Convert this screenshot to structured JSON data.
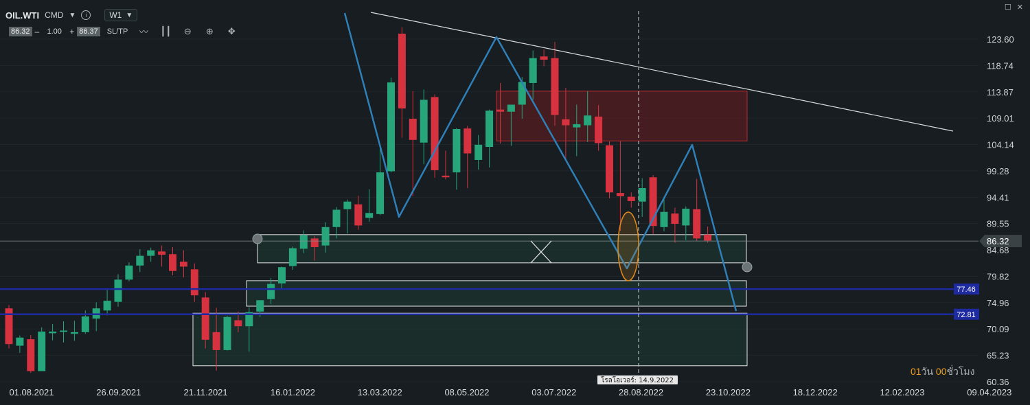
{
  "header": {
    "symbol": "OIL.WTI",
    "asset_class": "CMD",
    "info_icon": "info-icon",
    "timeframe": "W1"
  },
  "trade_panel": {
    "sell_price": "86.32",
    "minus": "–",
    "volume": "1.00",
    "plus": "+",
    "buy_price": "86.37",
    "sltp": "SL/TP",
    "tools": [
      "line-chart-icon",
      "candlestick-icon",
      "zoom-out-icon",
      "zoom-in-icon",
      "crosshair-icon"
    ]
  },
  "window_controls": {
    "maximize": "☐",
    "close": "✕"
  },
  "countdown": {
    "days_value": "01",
    "days_label": "วัน",
    "hours_value": "00",
    "hours_label": "ชั่วโมง"
  },
  "rollover_label": "โรลโอเวอร์: 14.9.2022",
  "colors": {
    "background": "#171d20",
    "bull": "#26a67a",
    "bear": "#d6323f",
    "zigzag": "#2f7fb8",
    "level_line": "#1e2aa0",
    "resistance_zone": "#5a1e22",
    "support_zone": "#1f3a33",
    "highlight_ellipse": "#e08a1c"
  },
  "chart_data": {
    "type": "candlestick",
    "symbol": "OIL.WTI",
    "timeframe": "W1",
    "y_range": [
      60.36,
      126.0
    ],
    "y_ticks": [
      "123.60",
      "118.74",
      "113.87",
      "109.01",
      "104.14",
      "99.28",
      "94.41",
      "89.55",
      "84.68",
      "79.82",
      "74.96",
      "70.09",
      "65.23",
      "60.36"
    ],
    "x_labels": [
      "01.08.2021",
      "26.09.2021",
      "21.11.2021",
      "16.01.2022",
      "13.03.2022",
      "08.05.2022",
      "03.07.2022",
      "28.08.2022",
      "23.10.2022",
      "18.12.2022",
      "12.02.2023",
      "09.04.2023"
    ],
    "current_price": 86.32,
    "price_labels": [
      {
        "value": 86.32,
        "text": "86.32"
      },
      {
        "value": 77.46,
        "text": "77.46"
      },
      {
        "value": 72.81,
        "text": "72.81"
      }
    ],
    "candles": [
      {
        "o": 73.9,
        "h": 74.5,
        "c": 67.3,
        "l": 66.5
      },
      {
        "o": 67.0,
        "h": 68.9,
        "c": 68.5,
        "l": 65.7
      },
      {
        "o": 68.2,
        "h": 69.0,
        "c": 62.3,
        "l": 62.0
      },
      {
        "o": 62.3,
        "h": 70.4,
        "c": 69.6,
        "l": 62.3
      },
      {
        "o": 69.3,
        "h": 71.0,
        "c": 69.6,
        "l": 68.0
      },
      {
        "o": 69.6,
        "h": 71.5,
        "c": 69.8,
        "l": 67.6
      },
      {
        "o": 69.2,
        "h": 71.6,
        "c": 69.5,
        "l": 67.9
      },
      {
        "o": 69.5,
        "h": 73.5,
        "c": 72.4,
        "l": 69.2
      },
      {
        "o": 72.0,
        "h": 75.0,
        "c": 73.9,
        "l": 69.7
      },
      {
        "o": 73.5,
        "h": 77.3,
        "c": 75.3,
        "l": 72.6
      },
      {
        "o": 75.1,
        "h": 80.2,
        "c": 79.2,
        "l": 74.2
      },
      {
        "o": 79.2,
        "h": 82.4,
        "c": 81.8,
        "l": 78.9
      },
      {
        "o": 81.8,
        "h": 84.8,
        "c": 83.6,
        "l": 80.6
      },
      {
        "o": 83.6,
        "h": 85.1,
        "c": 84.6,
        "l": 82.5
      },
      {
        "o": 84.4,
        "h": 85.5,
        "c": 83.8,
        "l": 81.6
      },
      {
        "o": 83.9,
        "h": 85.2,
        "c": 80.8,
        "l": 80.0
      },
      {
        "o": 82.5,
        "h": 84.6,
        "c": 81.6,
        "l": 79.6
      },
      {
        "o": 81.1,
        "h": 82.2,
        "c": 76.3,
        "l": 75.1
      },
      {
        "o": 75.9,
        "h": 76.9,
        "c": 68.1,
        "l": 66.5
      },
      {
        "o": 69.5,
        "h": 74.0,
        "c": 66.2,
        "l": 62.4
      },
      {
        "o": 66.2,
        "h": 72.5,
        "c": 72.3,
        "l": 66.1
      },
      {
        "o": 71.7,
        "h": 73.3,
        "c": 70.6,
        "l": 69.5
      },
      {
        "o": 70.6,
        "h": 74.1,
        "c": 73.2,
        "l": 65.9
      },
      {
        "o": 73.3,
        "h": 75.4,
        "c": 75.4,
        "l": 72.3
      },
      {
        "o": 75.6,
        "h": 79.5,
        "c": 78.4,
        "l": 74.7
      },
      {
        "o": 78.5,
        "h": 81.6,
        "c": 81.5,
        "l": 77.6
      },
      {
        "o": 81.7,
        "h": 85.3,
        "c": 85.0,
        "l": 81.0
      },
      {
        "o": 84.9,
        "h": 88.3,
        "c": 87.4,
        "l": 84.1
      },
      {
        "o": 86.8,
        "h": 87.2,
        "c": 85.2,
        "l": 82.7
      },
      {
        "o": 85.5,
        "h": 89.8,
        "c": 88.9,
        "l": 84.2
      },
      {
        "o": 88.9,
        "h": 92.6,
        "c": 92.1,
        "l": 86.8
      },
      {
        "o": 92.2,
        "h": 94.0,
        "c": 93.6,
        "l": 87.7
      },
      {
        "o": 93.1,
        "h": 94.7,
        "c": 89.2,
        "l": 88.4
      },
      {
        "o": 90.6,
        "h": 95.9,
        "c": 91.5,
        "l": 89.9
      },
      {
        "o": 91.3,
        "h": 104.0,
        "c": 99.0,
        "l": 91.1
      },
      {
        "o": 99.2,
        "h": 116.5,
        "c": 115.6,
        "l": 99.0
      },
      {
        "o": 124.6,
        "h": 125.8,
        "c": 110.8,
        "l": 105.4
      },
      {
        "o": 108.9,
        "h": 114.0,
        "c": 105.0,
        "l": 94.6
      },
      {
        "o": 104.5,
        "h": 114.3,
        "c": 112.4,
        "l": 100.5
      },
      {
        "o": 112.9,
        "h": 113.4,
        "c": 99.4,
        "l": 98.0
      },
      {
        "o": 98.4,
        "h": 103.0,
        "c": 98.1,
        "l": 97.7
      },
      {
        "o": 99.0,
        "h": 107.2,
        "c": 107.0,
        "l": 95.8
      },
      {
        "o": 107.1,
        "h": 107.6,
        "c": 102.5,
        "l": 96.1
      },
      {
        "o": 101.3,
        "h": 105.9,
        "c": 104.1,
        "l": 99.5
      },
      {
        "o": 103.7,
        "h": 110.6,
        "c": 110.4,
        "l": 99.9
      },
      {
        "o": 110.6,
        "h": 115.5,
        "c": 110.2,
        "l": 104.3
      },
      {
        "o": 110.2,
        "h": 111.5,
        "c": 111.5,
        "l": 103.9
      },
      {
        "o": 111.5,
        "h": 116.6,
        "c": 115.7,
        "l": 108.9
      },
      {
        "o": 115.5,
        "h": 121.5,
        "c": 120.1,
        "l": 112.4
      },
      {
        "o": 120.4,
        "h": 121.7,
        "c": 119.8,
        "l": 118.6
      },
      {
        "o": 120.1,
        "h": 123.1,
        "c": 109.6,
        "l": 107.6
      },
      {
        "o": 108.8,
        "h": 114.6,
        "c": 107.7,
        "l": 101.5
      },
      {
        "o": 107.3,
        "h": 111.5,
        "c": 107.9,
        "l": 102.0
      },
      {
        "o": 107.7,
        "h": 114.0,
        "c": 109.5,
        "l": 104.6
      },
      {
        "o": 109.3,
        "h": 111.4,
        "c": 104.4,
        "l": 103.0
      },
      {
        "o": 104.0,
        "h": 104.7,
        "c": 95.3,
        "l": 94.2
      },
      {
        "o": 95.2,
        "h": 104.8,
        "c": 94.6,
        "l": 88.2
      },
      {
        "o": 94.5,
        "h": 95.3,
        "c": 93.7,
        "l": 92.5
      },
      {
        "o": 93.6,
        "h": 97.9,
        "c": 96.1,
        "l": 90.8
      },
      {
        "o": 98.1,
        "h": 98.5,
        "c": 89.1,
        "l": 87.6
      },
      {
        "o": 88.9,
        "h": 94.1,
        "c": 91.7,
        "l": 88.1
      },
      {
        "o": 91.4,
        "h": 92.5,
        "c": 89.5,
        "l": 86.0
      },
      {
        "o": 89.2,
        "h": 92.7,
        "c": 92.3,
        "l": 86.5
      },
      {
        "o": 92.2,
        "h": 97.8,
        "c": 86.8,
        "l": 86.3
      },
      {
        "o": 87.5,
        "h": 89.0,
        "c": 86.4,
        "l": 86.0
      }
    ],
    "zones": [
      {
        "kind": "resistance",
        "y_top": 114.0,
        "y_bottom": 104.8
      },
      {
        "kind": "support",
        "y_top": 87.5,
        "y_bottom": 82.3
      },
      {
        "kind": "support",
        "y_top": 79.0,
        "y_bottom": 74.3
      },
      {
        "kind": "support",
        "y_top": 73.0,
        "y_bottom": 63.3
      }
    ],
    "horizontal_levels": [
      77.46,
      72.81
    ]
  }
}
